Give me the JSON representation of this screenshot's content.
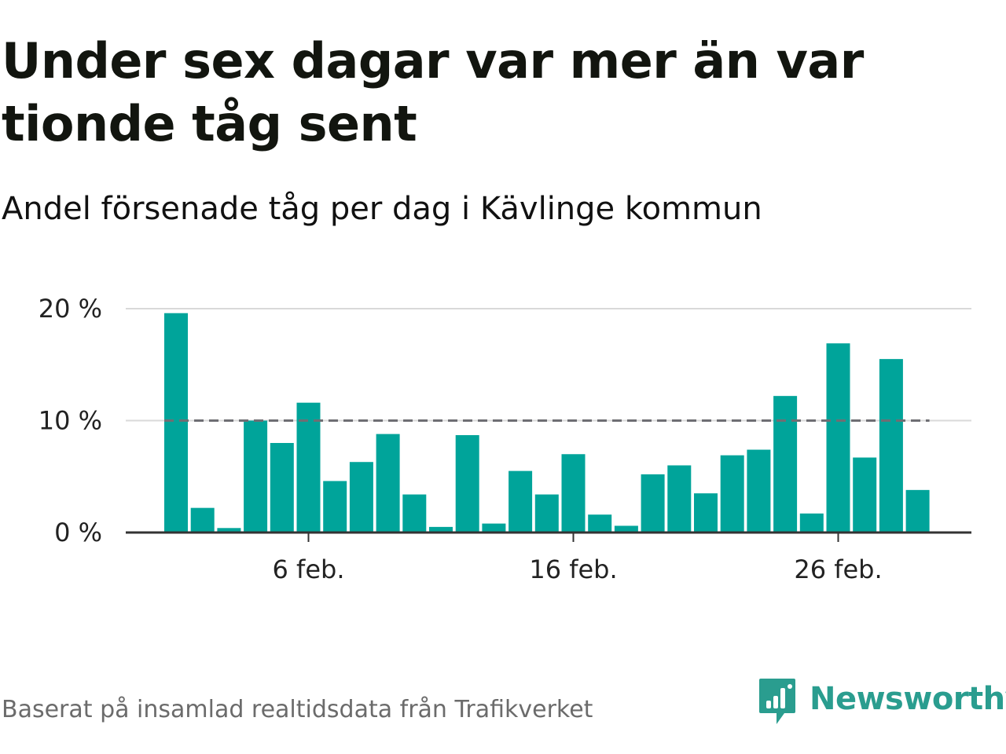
{
  "title": "Under sex dagar var mer än var tionde tåg sent",
  "subtitle": "Andel försenade tåg per dag i Kävlinge kommun",
  "source": "Baserat på insamlad realtidsdata från Trafikverket",
  "brand": {
    "name": "Newsworthy",
    "icon": "newsworthy-logo-icon",
    "color": "#2a9d8f"
  },
  "colors": {
    "bar": "#00a49a",
    "reference_line": "#6e6e73",
    "grid": "#d9d9d9",
    "axis": "#333333"
  },
  "chart_data": {
    "type": "bar",
    "categories": [
      "1 feb.",
      "2 feb.",
      "3 feb.",
      "4 feb.",
      "5 feb.",
      "6 feb.",
      "7 feb.",
      "8 feb.",
      "9 feb.",
      "10 feb.",
      "11 feb.",
      "12 feb.",
      "13 feb.",
      "14 feb.",
      "15 feb.",
      "16 feb.",
      "17 feb.",
      "18 feb.",
      "19 feb.",
      "20 feb.",
      "21 feb.",
      "22 feb.",
      "23 feb.",
      "24 feb.",
      "25 feb.",
      "26 feb.",
      "27 feb.",
      "28 feb.",
      "29 feb."
    ],
    "series": [
      {
        "values": [
          19.6,
          2.2,
          0.4,
          10.0,
          8.0,
          11.6,
          4.6,
          6.3,
          8.8,
          3.4,
          0.5,
          8.7,
          0.8,
          5.5,
          3.4,
          7.0,
          1.6,
          0.6,
          5.2,
          6.0,
          3.5,
          6.9,
          7.4,
          12.2,
          1.7,
          16.9,
          6.7,
          15.5,
          3.8
        ]
      }
    ],
    "reference_line": {
      "value": 10
    },
    "y_ticks": [
      {
        "value": 0,
        "label": "0 %"
      },
      {
        "value": 10,
        "label": "10 %"
      },
      {
        "value": 20,
        "label": "20 %"
      }
    ],
    "x_ticks": [
      {
        "index": 5,
        "label": "6 feb."
      },
      {
        "index": 15,
        "label": "16 feb."
      },
      {
        "index": 25,
        "label": "26 feb."
      }
    ],
    "ylim": [
      0,
      20
    ],
    "grid": true,
    "xlabel": "",
    "ylabel": ""
  }
}
